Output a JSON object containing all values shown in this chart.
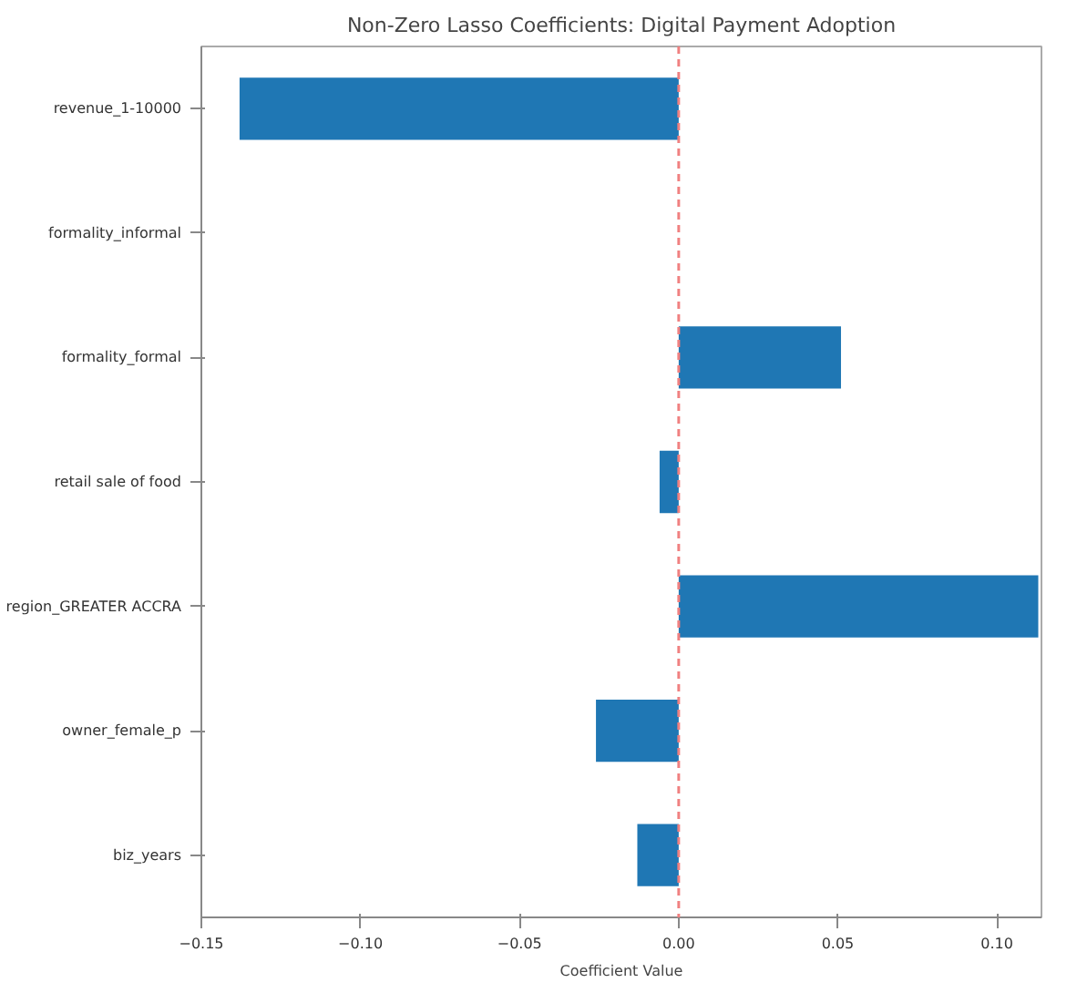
{
  "chart_data": {
    "type": "bar",
    "orientation": "horizontal",
    "title": "Non-Zero Lasso Coefficients: Digital Payment Adoption",
    "xlabel": "Coefficient Value",
    "categories": [
      "revenue_1-10000",
      "formality_informal",
      "formality_formal",
      "retail sale of food",
      "region_GREATER ACCRA",
      "owner_female_p",
      "biz_years"
    ],
    "values": [
      -0.138,
      0,
      0.051,
      -0.006,
      0.113,
      -0.026,
      -0.013
    ],
    "color": "#1f77b4",
    "xlim": [
      -0.15,
      0.114
    ],
    "xticks": [
      {
        "value": -0.15,
        "label": "−0.15"
      },
      {
        "value": -0.1,
        "label": "−0.10"
      },
      {
        "value": -0.05,
        "label": "−0.05"
      },
      {
        "value": 0,
        "label": "0.00"
      },
      {
        "value": 0.05,
        "label": "0.05"
      },
      {
        "value": 0.1,
        "label": "0.10"
      }
    ],
    "ref_lines": [
      {
        "axis": "x",
        "value": 0,
        "color": "#f08080",
        "line_style": "dashed"
      }
    ],
    "grid": false
  }
}
